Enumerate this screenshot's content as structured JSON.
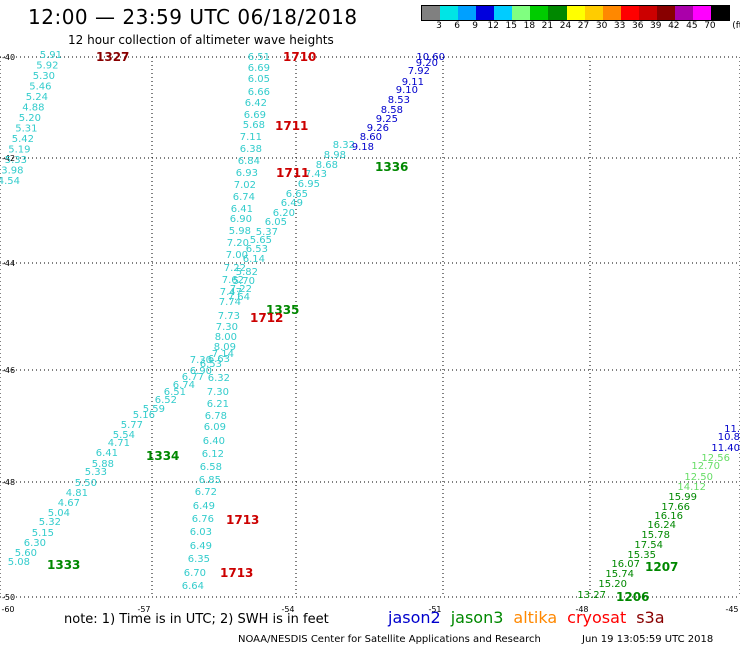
{
  "header": {
    "title": "12:00 — 23:59 UTC 06/18/2018",
    "subtitle": "12 hour collection of altimeter wave heights"
  },
  "legend": {
    "unit": "(ft)",
    "labels": [
      "3",
      "6",
      "9",
      "12",
      "15",
      "18",
      "21",
      "24",
      "27",
      "30",
      "33",
      "36",
      "39",
      "42",
      "45",
      "70"
    ],
    "colors": [
      "#808080",
      "#00e5e5",
      "#00a0ff",
      "#0000dd",
      "#00ccff",
      "#80ff80",
      "#00cc00",
      "#008800",
      "#ffff00",
      "#ffcc00",
      "#ff8800",
      "#ff0000",
      "#cc0000",
      "#880000",
      "#aa00aa",
      "#ff00ff",
      "#000000"
    ]
  },
  "map": {
    "lat_ticks": [
      "-40",
      "-42",
      "-44",
      "-46",
      "-48",
      "-50"
    ],
    "lon_ticks": [
      "-60",
      "-57",
      "-54",
      "-51",
      "-48",
      "-45"
    ]
  },
  "tracks": [
    {
      "name": "track-a",
      "color": "#33cccc",
      "values": [
        "5.91",
        "5.92",
        "5.30",
        "5.46",
        "5.24",
        "4.88",
        "5.20",
        "5.31",
        "5.42",
        "5.19",
        "5.33",
        "3.98",
        "4.54"
      ]
    },
    {
      "name": "track-b",
      "color": "#33cccc",
      "values": [
        "6.51",
        "6.69",
        "6.05",
        "6.66",
        "6.42",
        "6.69",
        "5.68",
        "7.11",
        "6.38",
        "6.84",
        "6.93",
        "7.02",
        "6.74",
        "6.41",
        "6.90",
        "5.98",
        "7.20",
        "7.00",
        "7.22",
        "7.62",
        "7.47",
        "7.74",
        "7.73",
        "7.30",
        "8.00",
        "8.09",
        "7.14",
        "6.63",
        "6.53",
        "6.32",
        "7.30",
        "6.21",
        "6.78",
        "6.09",
        "6.40",
        "6.12",
        "6.58",
        "6.85",
        "6.72",
        "6.49",
        "6.76",
        "6.03",
        "6.49",
        "6.35",
        "6.70",
        "6.64"
      ]
    },
    {
      "name": "track-c",
      "color": "#33cccc",
      "values": [
        "7.64",
        "7.22",
        "5.70",
        "5.82",
        "6.14",
        "6.53",
        "5.65",
        "5.37",
        "6.05",
        "6.20",
        "6.49",
        "6.65",
        "6.95",
        "7.43",
        "8.68",
        "8.98",
        "8.32"
      ]
    },
    {
      "name": "track-c-high",
      "color": "#0000cc",
      "values": [
        "10.60",
        "9.20",
        "7.92",
        "9.11",
        "9.10",
        "8.53",
        "8.58",
        "9.25",
        "9.26",
        "8.60",
        "9.18"
      ]
    },
    {
      "name": "track-d",
      "color": "#33cccc",
      "values": [
        "7.30",
        "6.90",
        "6.77",
        "6.74",
        "6.51",
        "6.52",
        "5.59",
        "5.16",
        "5.77",
        "5.54",
        "4.71",
        "6.41",
        "5.88",
        "5.33",
        "5.50",
        "4.81",
        "4.67",
        "5.04",
        "5.32",
        "5.15",
        "6.30",
        "5.60",
        "5.08"
      ]
    },
    {
      "name": "track-e",
      "color": "#008800",
      "values": [
        "15.99",
        "17.66",
        "16.16",
        "16.24",
        "15.78",
        "17.54",
        "15.35",
        "16.07",
        "15.74",
        "15.20",
        "13.27"
      ]
    },
    {
      "name": "track-e-high",
      "color": "#0000cc",
      "values": [
        "11.",
        "10.8",
        "11.40"
      ]
    },
    {
      "name": "track-e-light",
      "color": "#66dd66",
      "values": [
        "12.56",
        "12.70",
        "12.50",
        "14.12"
      ]
    }
  ],
  "time_labels": [
    {
      "text": "1327",
      "color": "#880000"
    },
    {
      "text": "1710",
      "color": "#cc0000"
    },
    {
      "text": "1711",
      "color": "#cc0000"
    },
    {
      "text": "1711",
      "color": "#cc0000"
    },
    {
      "text": "1336",
      "color": "#008800"
    },
    {
      "text": "1335",
      "color": "#008800"
    },
    {
      "text": "1712",
      "color": "#cc0000"
    },
    {
      "text": "1334",
      "color": "#008800"
    },
    {
      "text": "1713",
      "color": "#cc0000"
    },
    {
      "text": "1713",
      "color": "#cc0000"
    },
    {
      "text": "1333",
      "color": "#008800"
    },
    {
      "text": "1207",
      "color": "#008800"
    },
    {
      "text": "1206",
      "color": "#008800"
    }
  ],
  "footer": {
    "note": "note:  1) Time is in UTC;  2) SWH is in feet",
    "satellites": [
      {
        "name": "jason2",
        "color": "#0000cc"
      },
      {
        "name": "jason3",
        "color": "#008800"
      },
      {
        "name": "altika",
        "color": "#ff8800"
      },
      {
        "name": "cryosat",
        "color": "#ff0000"
      },
      {
        "name": "s3a",
        "color": "#880000"
      }
    ],
    "credit": "NOAA/NESDIS Center for Satellite Applications and Research",
    "datestamp": "Jun 19 13:05:59 UTC 2018"
  }
}
